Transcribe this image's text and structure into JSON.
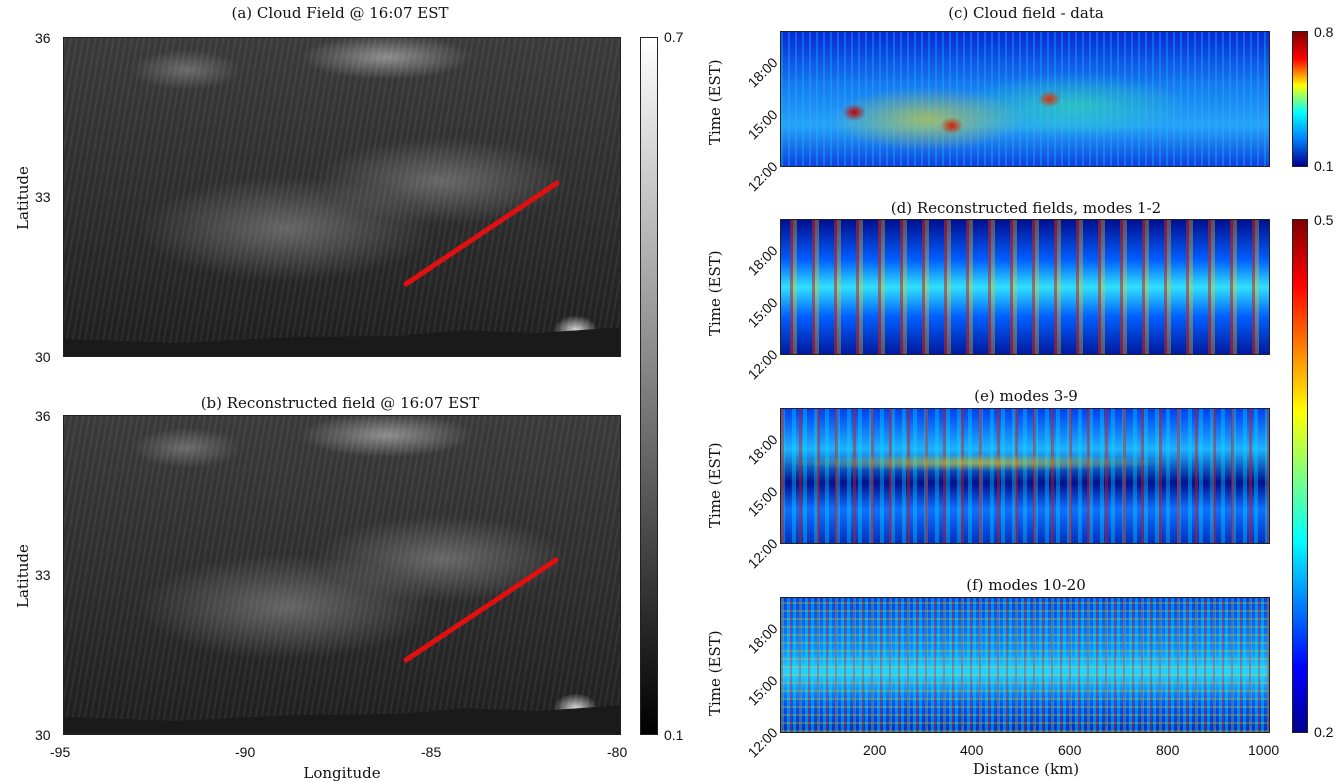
{
  "left_panels": {
    "a_title": "(a) Cloud Field @ 16:07 EST",
    "b_title": "(b) Reconstructed field @ 16:07 EST",
    "ylabel": "Latitude",
    "xlabel": "Longitude",
    "yticks": [
      "36",
      "33",
      "30"
    ],
    "xticks": [
      "-95",
      "-90",
      "-85",
      "-80"
    ],
    "colorbar": {
      "max": "0.7",
      "min": "0.1",
      "colormap": "gray"
    },
    "transect_color": "#e01010"
  },
  "right_panels": {
    "c_title": "(c) Cloud field - data",
    "d_title": "(d) Reconstructed fields, modes 1-2",
    "e_title": "(e) modes 3-9",
    "f_title": "(f) modes 10-20",
    "ylabel": "Time (EST)",
    "yticks": [
      "18:00",
      "15:00",
      "12:00"
    ],
    "xlabel": "Distance (km)",
    "xticks": [
      "200",
      "400",
      "600",
      "800",
      "1000"
    ],
    "colorbar_c": {
      "max": "0.8",
      "min": "0.1",
      "colormap": "jet"
    },
    "colorbar_def": {
      "max": "0.5",
      "min": "0.2",
      "colormap": "jet"
    }
  },
  "chart_data": [
    {
      "type": "heatmap",
      "title": "(a) Cloud Field @ 16:07 EST",
      "xlabel": "",
      "ylabel": "Latitude",
      "xlim": [
        -95,
        -80
      ],
      "ylim": [
        30,
        36
      ],
      "colorbar": [
        0.1,
        0.7
      ],
      "annotation": "red transect line from (-85.8, 31.4) to (-81.6, 33.3)"
    },
    {
      "type": "heatmap",
      "title": "(b) Reconstructed field @ 16:07 EST",
      "xlabel": "Longitude",
      "ylabel": "Latitude",
      "xlim": [
        -95,
        -80
      ],
      "ylim": [
        30,
        36
      ],
      "colorbar": [
        0.1,
        0.7
      ],
      "annotation": "red transect line from (-85.8, 31.4) to (-81.6, 33.3)"
    },
    {
      "type": "heatmap",
      "title": "(c) Cloud field - data",
      "ylabel": "Time (EST)",
      "xlim": [
        0,
        1000
      ],
      "colorbar": [
        0.1,
        0.8
      ]
    },
    {
      "type": "heatmap",
      "title": "(d) Reconstructed fields, modes 1-2",
      "ylabel": "Time (EST)",
      "xlim": [
        0,
        1000
      ],
      "colorbar": [
        0.2,
        0.5
      ]
    },
    {
      "type": "heatmap",
      "title": "(e) modes 3-9",
      "ylabel": "Time (EST)",
      "xlim": [
        0,
        1000
      ],
      "colorbar": [
        0.2,
        0.5
      ]
    },
    {
      "type": "heatmap",
      "title": "(f) modes 10-20",
      "xlabel": "Distance (km)",
      "ylabel": "Time (EST)",
      "xlim": [
        0,
        1000
      ],
      "colorbar": [
        0.2,
        0.5
      ]
    }
  ]
}
